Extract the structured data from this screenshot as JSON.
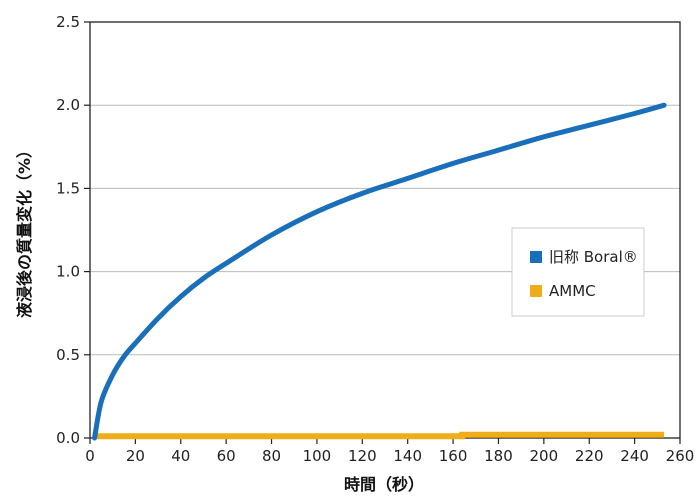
{
  "chart_data": {
    "type": "line",
    "title": "",
    "xlabel": "時間（秒）",
    "ylabel": "液浸後の質量変化（%）",
    "xlim": [
      0,
      260
    ],
    "ylim": [
      0,
      2.5
    ],
    "xticks": [
      0,
      20,
      40,
      60,
      80,
      100,
      120,
      140,
      160,
      180,
      200,
      220,
      240,
      260
    ],
    "yticks": [
      0.0,
      0.5,
      1.0,
      1.5,
      2.0,
      2.5
    ],
    "ytick_labels": [
      "0.0",
      "0.5",
      "1.0",
      "1.5",
      "2.0",
      "2.5"
    ],
    "grid": "horizontal",
    "legend": "right",
    "series": [
      {
        "name": "旧称 Boral®",
        "color": "#1a6fba",
        "x": [
          2,
          5,
          10,
          15,
          20,
          30,
          40,
          50,
          60,
          80,
          100,
          120,
          140,
          160,
          180,
          200,
          220,
          240,
          253
        ],
        "y": [
          0.0,
          0.22,
          0.38,
          0.49,
          0.57,
          0.72,
          0.85,
          0.96,
          1.05,
          1.22,
          1.36,
          1.47,
          1.56,
          1.65,
          1.73,
          1.81,
          1.88,
          1.95,
          2.0
        ]
      },
      {
        "name": "AMMC",
        "color": "#f0ad1a",
        "x": [
          2,
          164,
          164,
          253
        ],
        "y": [
          0.01,
          0.01,
          0.02,
          0.02
        ]
      }
    ]
  }
}
